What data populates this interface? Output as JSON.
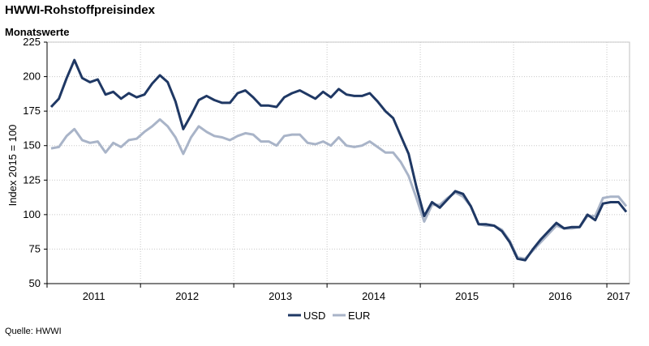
{
  "header": {
    "title": "HWWI-Rohstoffpreisindex",
    "subtitle": "Monatswerte"
  },
  "footer": {
    "source": "Quelle: HWWI"
  },
  "chart_data": {
    "type": "line",
    "ylabel": "Index 2015 = 100",
    "xlabel": "",
    "ylim": [
      50,
      225
    ],
    "yticks": [
      50,
      75,
      100,
      125,
      150,
      175,
      200,
      225
    ],
    "x_start": "2011-01",
    "x_end": "2017-03",
    "year_labels": [
      "2011",
      "2012",
      "2013",
      "2014",
      "2015",
      "2016",
      "2017"
    ],
    "grid": true,
    "legend": "bottom-center",
    "series": [
      {
        "name": "USD",
        "color": "#1f3864",
        "values": [
          178,
          184,
          199,
          212,
          199,
          196,
          198,
          187,
          189,
          184,
          188,
          185,
          187,
          195,
          201,
          196,
          182,
          162,
          172,
          183,
          186,
          183,
          181,
          181,
          188,
          190,
          185,
          179,
          179,
          178,
          185,
          188,
          190,
          187,
          184,
          189,
          185,
          191,
          187,
          186,
          186,
          188,
          182,
          175,
          170,
          157,
          144,
          120,
          99,
          109,
          105,
          111,
          117,
          115,
          106,
          93,
          93,
          92,
          88,
          80,
          68,
          67,
          75,
          82,
          88,
          94,
          90,
          91,
          91,
          100,
          96,
          108,
          109,
          109,
          102
        ]
      },
      {
        "name": "EUR",
        "color": "#a9b4c8",
        "values": [
          148,
          149,
          157,
          162,
          154,
          152,
          153,
          145,
          152,
          149,
          154,
          155,
          160,
          164,
          169,
          164,
          156,
          144,
          156,
          164,
          160,
          157,
          156,
          154,
          157,
          159,
          158,
          153,
          153,
          150,
          157,
          158,
          158,
          152,
          151,
          153,
          150,
          156,
          150,
          149,
          150,
          153,
          149,
          145,
          145,
          138,
          128,
          112,
          95,
          107,
          107,
          112,
          116,
          113,
          106,
          93,
          92,
          92,
          89,
          81,
          69,
          68,
          74,
          80,
          86,
          92,
          90,
          90,
          91,
          99,
          99,
          112,
          113,
          113,
          106
        ]
      }
    ]
  }
}
